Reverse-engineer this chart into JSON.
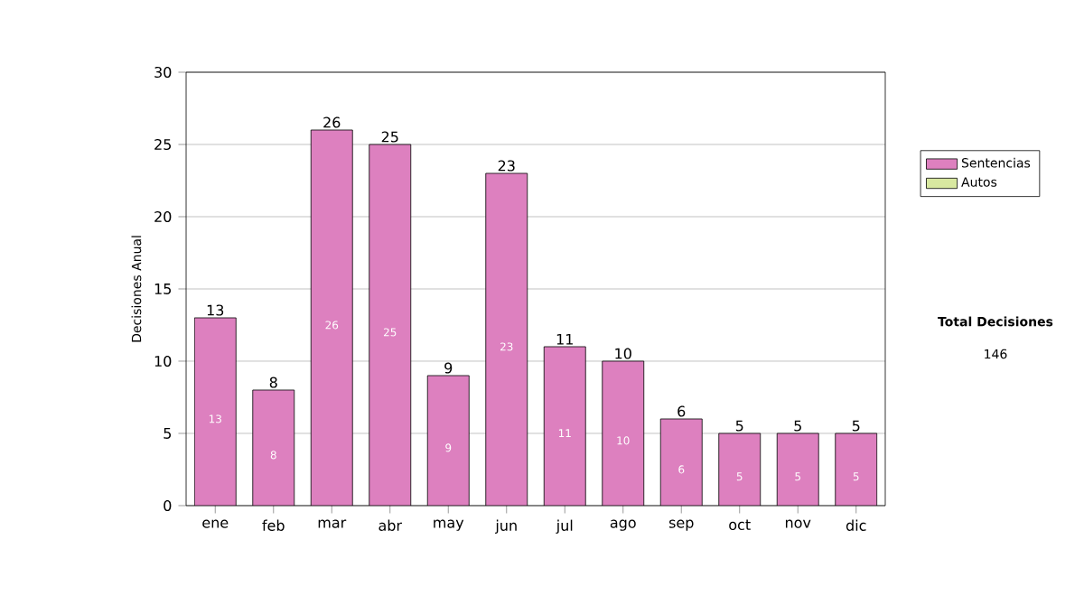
{
  "chart_data": {
    "type": "bar",
    "stacked": true,
    "ylabel": "Decisiones Anual",
    "categories": [
      "ene",
      "feb",
      "mar",
      "abr",
      "may",
      "jun",
      "jul",
      "ago",
      "sep",
      "oct",
      "nov",
      "dic"
    ],
    "series": [
      {
        "name": "Sentencias",
        "color": "#dd80bf",
        "values": [
          13,
          8,
          26,
          25,
          9,
          23,
          11,
          10,
          6,
          5,
          5,
          5
        ],
        "value_labels": [
          "13",
          "8",
          "26",
          "25",
          "9",
          "23",
          "11",
          "10",
          "6",
          "5",
          "5",
          "5"
        ]
      },
      {
        "name": "Autos",
        "color": "#d8e8a0",
        "values": [
          0,
          0,
          0,
          0,
          0,
          0,
          0,
          0,
          0,
          0,
          0,
          0
        ]
      }
    ],
    "totals": [
      "13",
      "8",
      "26",
      "25",
      "9",
      "23",
      "11",
      "10",
      "6",
      "5",
      "5",
      "5"
    ],
    "ylim": [
      0,
      30
    ],
    "yticks": [
      0,
      5,
      10,
      15,
      20,
      25,
      30
    ],
    "grid": "y",
    "legend": "right",
    "annotations": [
      "Total Decisiones",
      "146"
    ]
  }
}
